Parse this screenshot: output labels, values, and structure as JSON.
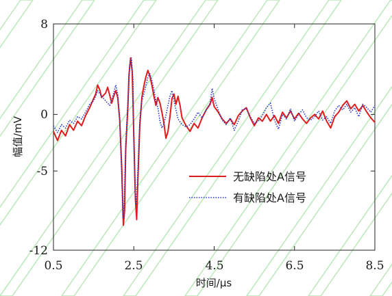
{
  "chart_data": {
    "type": "line",
    "xlabel": "时间/μs",
    "ylabel": "幅值/mV",
    "xlim": [
      0.5,
      8.5
    ],
    "ylim": [
      -12,
      8
    ],
    "xticks": [
      "0.5",
      "2.5",
      "4.5",
      "6.5",
      "8.5"
    ],
    "yticks": [
      "8",
      "0",
      "-5",
      "-12"
    ],
    "grid": false,
    "legend_position": "bottom-right",
    "series": [
      {
        "name": "无缺陷处A信号",
        "color": "#e01b1b",
        "style": "solid",
        "points": [
          [
            0.5,
            -1.5
          ],
          [
            0.6,
            -2.3
          ],
          [
            0.7,
            -1.4
          ],
          [
            0.8,
            -1.9
          ],
          [
            0.9,
            -0.9
          ],
          [
            1.0,
            -1.4
          ],
          [
            1.1,
            -0.6
          ],
          [
            1.2,
            -1.0
          ],
          [
            1.3,
            -0.1
          ],
          [
            1.4,
            0.6
          ],
          [
            1.5,
            1.4
          ],
          [
            1.55,
            1.8
          ],
          [
            1.6,
            2.6
          ],
          [
            1.65,
            2.2
          ],
          [
            1.7,
            1.5
          ],
          [
            1.8,
            1.9
          ],
          [
            1.85,
            2.4
          ],
          [
            1.9,
            1.7
          ],
          [
            1.95,
            1.0
          ],
          [
            2.0,
            1.6
          ],
          [
            2.05,
            2.1
          ],
          [
            2.1,
            1.5
          ],
          [
            2.15,
            -0.5
          ],
          [
            2.2,
            -4.8
          ],
          [
            2.24,
            -9.8
          ],
          [
            2.27,
            -8.5
          ],
          [
            2.3,
            -3.0
          ],
          [
            2.35,
            0.5
          ],
          [
            2.38,
            3.5
          ],
          [
            2.42,
            5.0
          ],
          [
            2.46,
            3.8
          ],
          [
            2.5,
            -2.0
          ],
          [
            2.54,
            -7.5
          ],
          [
            2.57,
            -9.3
          ],
          [
            2.6,
            -6.0
          ],
          [
            2.65,
            -1.0
          ],
          [
            2.7,
            1.5
          ],
          [
            2.75,
            2.5
          ],
          [
            2.8,
            3.3
          ],
          [
            2.85,
            3.9
          ],
          [
            2.9,
            3.4
          ],
          [
            2.95,
            2.6
          ],
          [
            3.0,
            1.6
          ],
          [
            3.05,
            0.8
          ],
          [
            3.1,
            1.5
          ],
          [
            3.15,
            1.0
          ],
          [
            3.2,
            0.2
          ],
          [
            3.25,
            -0.8
          ],
          [
            3.3,
            -2.1
          ],
          [
            3.35,
            -1.5
          ],
          [
            3.4,
            -0.2
          ],
          [
            3.45,
            1.4
          ],
          [
            3.5,
            1.8
          ],
          [
            3.55,
            0.9
          ],
          [
            3.6,
            1.6
          ],
          [
            3.65,
            0.8
          ],
          [
            3.7,
            -0.3
          ],
          [
            3.8,
            -1.0
          ],
          [
            3.9,
            -1.5
          ],
          [
            4.0,
            -0.8
          ],
          [
            4.1,
            -1.2
          ],
          [
            4.2,
            -0.3
          ],
          [
            4.3,
            0.4
          ],
          [
            4.4,
            0.9
          ],
          [
            4.45,
            1.5
          ],
          [
            4.5,
            0.7
          ],
          [
            4.6,
            0.2
          ],
          [
            4.7,
            -0.4
          ],
          [
            4.8,
            -0.8
          ],
          [
            4.9,
            -0.4
          ],
          [
            5.0,
            -0.9
          ],
          [
            5.1,
            -0.1
          ],
          [
            5.2,
            0.3
          ],
          [
            5.3,
            0.6
          ],
          [
            5.4,
            -0.3
          ],
          [
            5.5,
            -1.0
          ],
          [
            5.6,
            -0.3
          ],
          [
            5.7,
            -0.6
          ],
          [
            5.8,
            0.0
          ],
          [
            5.9,
            -0.6
          ],
          [
            6.0,
            -0.1
          ],
          [
            6.1,
            -0.8
          ],
          [
            6.2,
            0.2
          ],
          [
            6.3,
            -0.3
          ],
          [
            6.4,
            0.3
          ],
          [
            6.5,
            -0.4
          ],
          [
            6.6,
            0.1
          ],
          [
            6.7,
            -0.4
          ],
          [
            6.8,
            -0.8
          ],
          [
            6.9,
            -0.3
          ],
          [
            7.0,
            0.0
          ],
          [
            7.1,
            -0.4
          ],
          [
            7.2,
            0.3
          ],
          [
            7.3,
            -0.6
          ],
          [
            7.4,
            -1.2
          ],
          [
            7.5,
            -0.2
          ],
          [
            7.6,
            0.2
          ],
          [
            7.7,
            0.8
          ],
          [
            7.8,
            1.2
          ],
          [
            7.9,
            0.5
          ],
          [
            8.0,
            0.9
          ],
          [
            8.1,
            0.3
          ],
          [
            8.2,
            0.8
          ],
          [
            8.3,
            0.2
          ],
          [
            8.4,
            -0.3
          ],
          [
            8.5,
            -0.7
          ]
        ]
      },
      {
        "name": "有缺陷处A信号",
        "color": "#2233cc",
        "style": "dotted",
        "points": [
          [
            0.5,
            -1.0
          ],
          [
            0.6,
            -1.6
          ],
          [
            0.7,
            -0.9
          ],
          [
            0.8,
            -1.2
          ],
          [
            0.9,
            -0.5
          ],
          [
            1.0,
            -0.8
          ],
          [
            1.1,
            -0.2
          ],
          [
            1.2,
            -0.4
          ],
          [
            1.3,
            0.2
          ],
          [
            1.4,
            0.9
          ],
          [
            1.5,
            1.2
          ],
          [
            1.55,
            1.6
          ],
          [
            1.6,
            2.1
          ],
          [
            1.7,
            1.6
          ],
          [
            1.8,
            1.2
          ],
          [
            1.9,
            0.8
          ],
          [
            1.95,
            1.3
          ],
          [
            2.0,
            1.9
          ],
          [
            2.05,
            2.6
          ],
          [
            2.1,
            1.8
          ],
          [
            2.15,
            -0.5
          ],
          [
            2.2,
            -5.5
          ],
          [
            2.23,
            -9.2
          ],
          [
            2.26,
            -8.0
          ],
          [
            2.3,
            -2.5
          ],
          [
            2.35,
            1.0
          ],
          [
            2.4,
            4.5
          ],
          [
            2.44,
            5.0
          ],
          [
            2.48,
            3.0
          ],
          [
            2.5,
            -2.5
          ],
          [
            2.53,
            -6.8
          ],
          [
            2.56,
            -8.0
          ],
          [
            2.6,
            -5.0
          ],
          [
            2.65,
            -0.5
          ],
          [
            2.7,
            1.2
          ],
          [
            2.75,
            1.8
          ],
          [
            2.8,
            2.5
          ],
          [
            2.85,
            3.3
          ],
          [
            2.9,
            3.6
          ],
          [
            2.95,
            3.0
          ],
          [
            3.0,
            2.2
          ],
          [
            3.05,
            1.2
          ],
          [
            3.1,
            0.6
          ],
          [
            3.15,
            -0.6
          ],
          [
            3.2,
            -1.2
          ],
          [
            3.25,
            -0.8
          ],
          [
            3.3,
            -0.1
          ],
          [
            3.35,
            0.8
          ],
          [
            3.4,
            1.6
          ],
          [
            3.45,
            2.1
          ],
          [
            3.5,
            1.2
          ],
          [
            3.6,
            -0.4
          ],
          [
            3.7,
            -0.9
          ],
          [
            3.8,
            -1.1
          ],
          [
            3.9,
            -0.9
          ],
          [
            4.0,
            -0.4
          ],
          [
            4.1,
            0.2
          ],
          [
            4.2,
            -0.3
          ],
          [
            4.3,
            0.4
          ],
          [
            4.4,
            1.0
          ],
          [
            4.45,
            2.3
          ],
          [
            4.5,
            1.4
          ],
          [
            4.6,
            0.4
          ],
          [
            4.7,
            -0.5
          ],
          [
            4.8,
            -0.9
          ],
          [
            4.9,
            -0.3
          ],
          [
            5.0,
            -1.4
          ],
          [
            5.1,
            -0.6
          ],
          [
            5.2,
            0.4
          ],
          [
            5.3,
            0.5
          ],
          [
            5.4,
            -0.2
          ],
          [
            5.5,
            -0.8
          ],
          [
            5.6,
            -0.6
          ],
          [
            5.7,
            -0.1
          ],
          [
            5.8,
            0.6
          ],
          [
            5.9,
            1.0
          ],
          [
            6.0,
            -0.5
          ],
          [
            6.1,
            -1.3
          ],
          [
            6.2,
            0.0
          ],
          [
            6.3,
            -0.4
          ],
          [
            6.4,
            0.5
          ],
          [
            6.5,
            -0.6
          ],
          [
            6.6,
            0.0
          ],
          [
            6.7,
            0.4
          ],
          [
            6.8,
            -0.3
          ],
          [
            6.9,
            -0.5
          ],
          [
            7.0,
            -0.2
          ],
          [
            7.1,
            0.3
          ],
          [
            7.2,
            -0.5
          ],
          [
            7.3,
            -0.2
          ],
          [
            7.4,
            -0.8
          ],
          [
            7.5,
            0.3
          ],
          [
            7.6,
            0.8
          ],
          [
            7.7,
            0.4
          ],
          [
            7.8,
            0.9
          ],
          [
            7.9,
            0.2
          ],
          [
            8.0,
            0.6
          ],
          [
            8.1,
            -0.2
          ],
          [
            8.2,
            0.9
          ],
          [
            8.3,
            0.6
          ],
          [
            8.4,
            0.2
          ],
          [
            8.5,
            0.8
          ]
        ]
      }
    ]
  }
}
